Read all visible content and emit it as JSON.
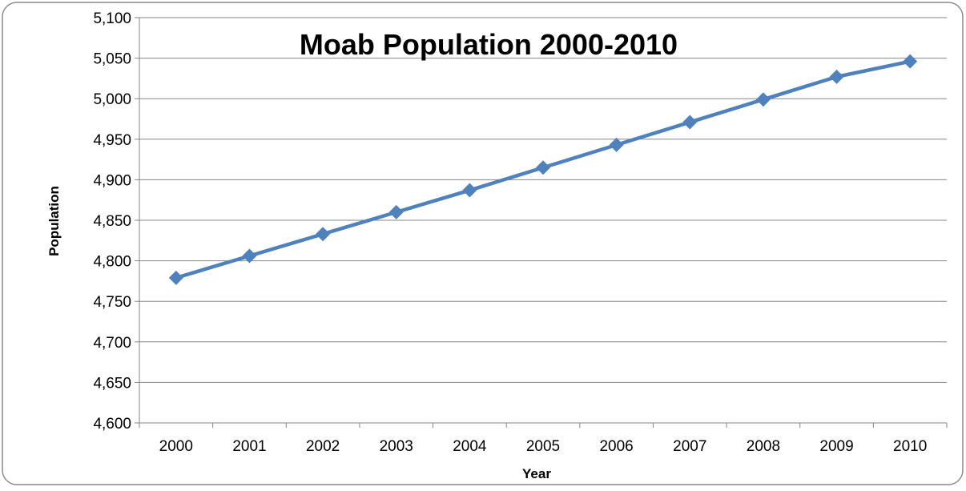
{
  "chart_data": {
    "type": "line",
    "title": "Moab Population 2000-2010",
    "xlabel": "Year",
    "ylabel": "Population",
    "categories": [
      "2000",
      "2001",
      "2002",
      "2003",
      "2004",
      "2005",
      "2006",
      "2007",
      "2008",
      "2009",
      "2010"
    ],
    "series": [
      {
        "values": [
          4779,
          4806,
          4833,
          4860,
          4887,
          4915,
          4943,
          4971,
          4999,
          5027,
          5046
        ],
        "color": "#4F81BD",
        "marker": "diamond"
      }
    ],
    "ylim": [
      4600,
      5100
    ],
    "yticks": [
      "4,600",
      "4,650",
      "4,700",
      "4,750",
      "4,800",
      "4,850",
      "4,900",
      "4,950",
      "5,000",
      "5,050",
      "5,100"
    ],
    "ytick_values": [
      4600,
      4650,
      4700,
      4750,
      4800,
      4850,
      4900,
      4950,
      5000,
      5050,
      5100
    ],
    "grid": "horizontal",
    "legend": "none",
    "colors": {
      "gridline": "#868686",
      "axis": "#868686",
      "border": "#8c8c8c",
      "background": "#ffffff"
    }
  }
}
